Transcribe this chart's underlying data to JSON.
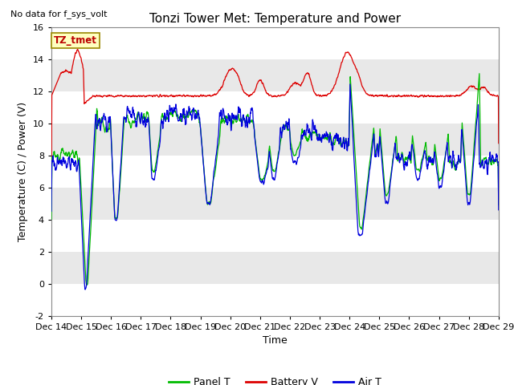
{
  "title": "Tonzi Tower Met: Temperature and Power",
  "no_data_text": "No data for f_sys_volt",
  "tz_label": "TZ_tmet",
  "xlabel": "Time",
  "ylabel": "Temperature (C) / Power (V)",
  "ylim": [
    -2,
    16
  ],
  "xlim": [
    0,
    360
  ],
  "xtick_positions": [
    0,
    24,
    48,
    72,
    96,
    120,
    144,
    168,
    192,
    216,
    240,
    264,
    288,
    312,
    336,
    360
  ],
  "xtick_labels": [
    "Dec 14",
    "Dec 15",
    "Dec 16",
    "Dec 17",
    "Dec 18",
    "Dec 19",
    "Dec 20",
    "Dec 21",
    "Dec 22",
    "Dec 23",
    "Dec 24",
    "Dec 25",
    "Dec 26",
    "Dec 27",
    "Dec 28",
    "Dec 29"
  ],
  "ytick_positions": [
    -2,
    0,
    2,
    4,
    6,
    8,
    10,
    12,
    14,
    16
  ],
  "panel_t_color": "#00bb00",
  "battery_v_color": "#dd0000",
  "air_t_color": "#0000dd",
  "band_color": "#e8e8e8",
  "background_color": "#ffffff",
  "title_fontsize": 11,
  "axis_fontsize": 9,
  "tick_fontsize": 8,
  "legend_labels": [
    "Panel T",
    "Battery V",
    "Air T"
  ],
  "legend_colors": [
    "#00bb00",
    "#dd0000",
    "#0000dd"
  ]
}
